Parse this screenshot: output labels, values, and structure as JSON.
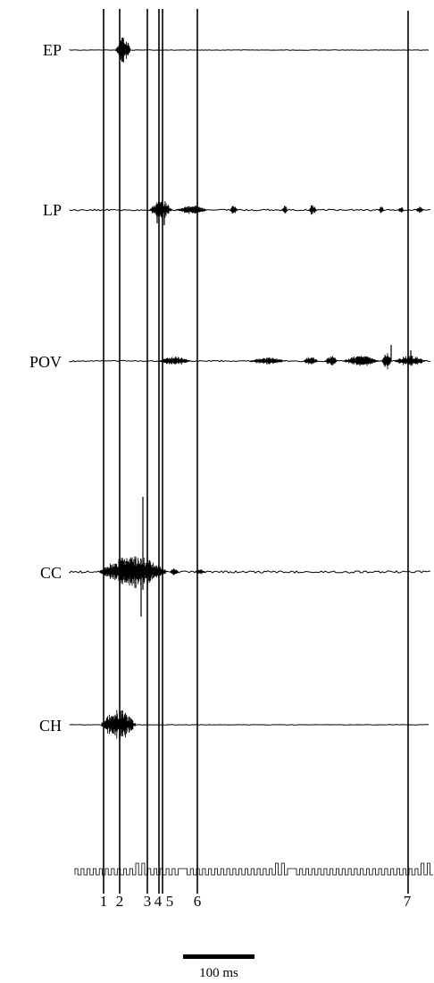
{
  "traces": [
    {
      "label": "EP"
    },
    {
      "label": "LP"
    },
    {
      "label": "POV"
    },
    {
      "label": "CC"
    },
    {
      "label": "CH"
    }
  ],
  "markers": [
    {
      "label": "1"
    },
    {
      "label": "2"
    },
    {
      "label": "3"
    },
    {
      "label": "4"
    },
    {
      "label": "5"
    },
    {
      "label": "6"
    },
    {
      "label": "7"
    }
  ],
  "scale_bar": {
    "label": "100 ms",
    "value": 100,
    "unit": "ms"
  },
  "colors": {
    "ink": "#000000",
    "background": "#ffffff"
  }
}
